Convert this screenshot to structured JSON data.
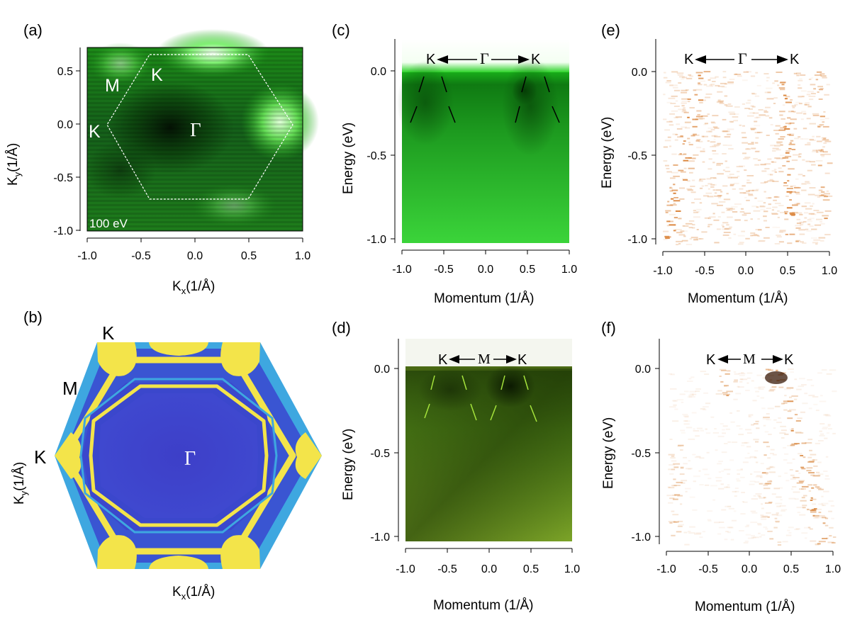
{
  "figure": {
    "panels": {
      "a": {
        "label": "(a)",
        "xlabel_main": "K",
        "xlabel_sub": "x",
        "xlabel_unit": "(1/Å)",
        "ylabel_main": "K",
        "ylabel_sub": "y",
        "ylabel_unit": "(1/Å)",
        "xticks": [
          "-1.0",
          "-0.5",
          "0.0",
          "0.5",
          "1.0"
        ],
        "yticks": [
          "0.5",
          "0.0",
          "-0.5",
          "-1.0"
        ],
        "energy_label": "100 eV",
        "point_labels": {
          "M": "M",
          "K_top": "K",
          "K_left": "K",
          "Gamma": "Γ"
        },
        "colormap": "green",
        "accent_color": "#27c41f"
      },
      "b": {
        "label": "(b)",
        "xlabel_main": "K",
        "xlabel_sub": "x",
        "xlabel_unit": "(1/Å)",
        "ylabel_main": "K",
        "ylabel_sub": "y",
        "ylabel_unit": "(1/Å)",
        "point_labels": {
          "K_top": "K",
          "M": "M",
          "K_left": "K",
          "Gamma": "Γ"
        },
        "hex_blue": "#3c3ccc",
        "hex_yellow": "#f3e44a",
        "hex_cyan": "#3ea7e0"
      },
      "c": {
        "label": "(c)",
        "xlabel": "Momentum (1/Å)",
        "ylabel": "Energy (eV)",
        "xticks": [
          "-1.0",
          "-0.5",
          "0.0",
          "0.5",
          "1.0"
        ],
        "yticks": [
          "0.0",
          "-0.5",
          "-1.0"
        ],
        "path": {
          "left": "K",
          "center": "Γ",
          "right": "K"
        },
        "accent_color": "#2ed32a"
      },
      "d": {
        "label": "(d)",
        "xlabel": "Momentum (1/Å)",
        "ylabel": "Energy (eV)",
        "xticks": [
          "-1.0",
          "-0.5",
          "0.0",
          "0.5",
          "1.0"
        ],
        "yticks": [
          "0.0",
          "-0.5",
          "-1.0"
        ],
        "path": {
          "left": "K",
          "center": "M",
          "right": "K"
        },
        "accent_color": "#5d8c1c"
      },
      "e": {
        "label": "(e)",
        "xlabel": "Momentum (1/Å)",
        "ylabel": "Energy (eV)",
        "xticks": [
          "-1.0",
          "-0.5",
          "0.0",
          "0.5",
          "1.0"
        ],
        "yticks": [
          "0.0",
          "-0.5",
          "-1.0"
        ],
        "path": {
          "left": "K",
          "center": "Γ",
          "right": "K"
        },
        "accent_color": "#e08a3c"
      },
      "f": {
        "label": "(f)",
        "xlabel": "Momentum (1/Å)",
        "ylabel": "Energy (eV)",
        "xticks": [
          "-1.0",
          "-0.5",
          "0.0",
          "0.5",
          "1.0"
        ],
        "yticks": [
          "0.0",
          "-0.5",
          "-1.0"
        ],
        "path": {
          "left": "K",
          "center": "M",
          "right": "K"
        },
        "accent_color": "#d8843a"
      }
    }
  }
}
